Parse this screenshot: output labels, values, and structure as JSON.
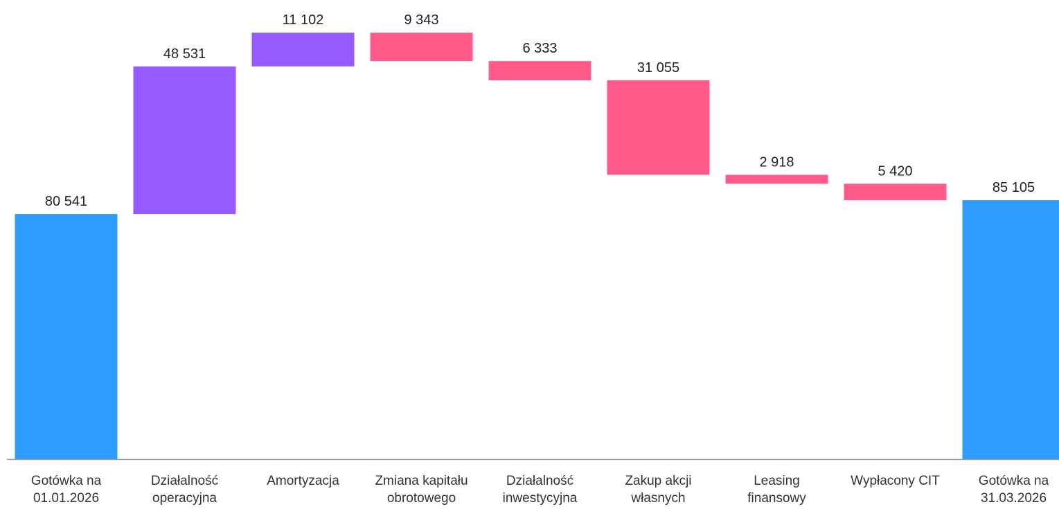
{
  "chart_data": {
    "type": "waterfall",
    "categories": [
      "Gotówka na\n01.01.2026",
      "Działalność\noperacyjna",
      "Amortyzacja",
      "Zmiana kapitału\nobrotowego",
      "Działalność\ninwestycyjna",
      "Zakup akcji\nwłasnych",
      "Leasing\nfinansowy",
      "Wypłacony CIT",
      "Gotówka na\n31.03.2026"
    ],
    "measure": [
      "absolute",
      "relative",
      "relative",
      "relative",
      "relative",
      "relative",
      "relative",
      "relative",
      "absolute"
    ],
    "values": [
      80541,
      48531,
      11102,
      -9343,
      -6333,
      -31055,
      -2918,
      -5420,
      85105
    ],
    "value_labels": [
      "80 541",
      "48 531",
      "11 102",
      "9 343",
      "6 333",
      "31 055",
      "2 918",
      "5 420",
      "85 105"
    ],
    "colors": {
      "total": "#2e9bff",
      "increase": "#945cff",
      "decrease": "#ff5a8a"
    },
    "ylim": [
      0,
      150000
    ]
  }
}
